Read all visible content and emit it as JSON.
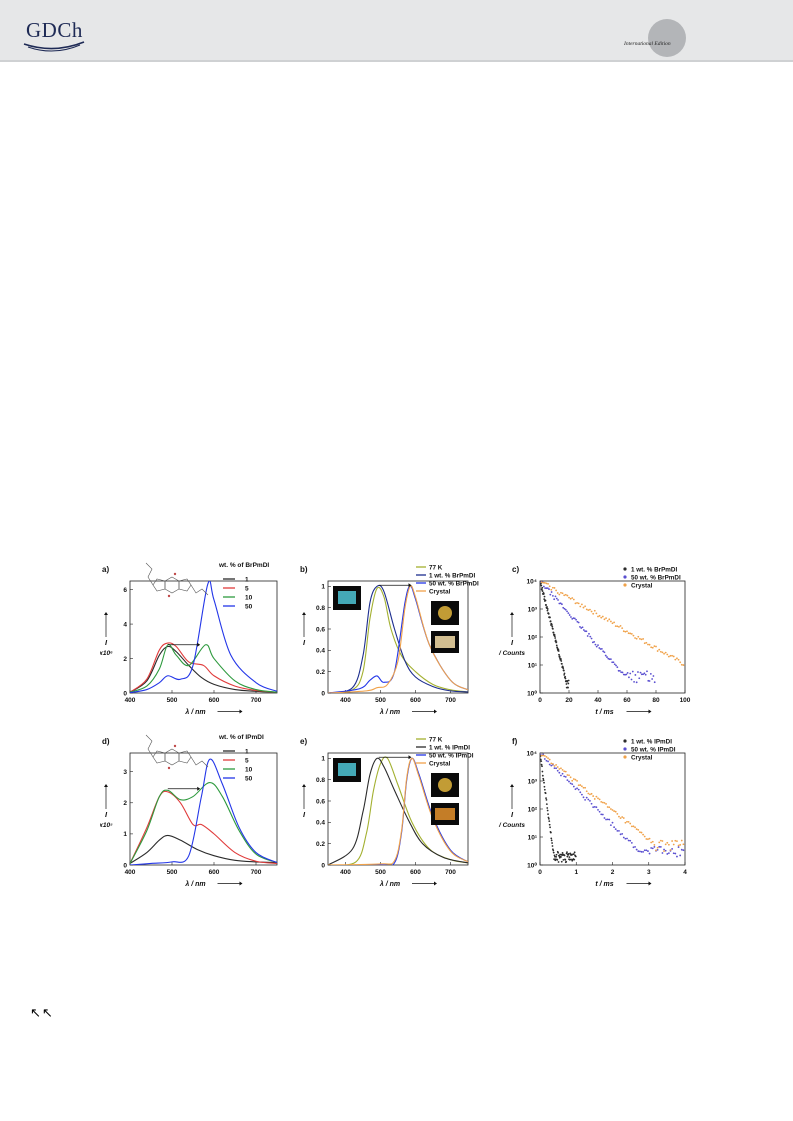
{
  "header": {
    "logo_text": "GDCh",
    "edition_label": "International Edition"
  },
  "nav": {
    "arrows": "↖↖"
  },
  "colors": {
    "black": "#2b2b2b",
    "red": "#e03b3b",
    "green": "#2e9a3e",
    "blue": "#2336e8",
    "olive": "#a3b030",
    "navy": "#1d2e8f",
    "orange": "#f0a24a",
    "violet": "#5a4fd0"
  },
  "chart_data": [
    {
      "panel": "a)",
      "type": "line",
      "legend_title": "wt. % of BrPmDI",
      "legend": [
        "1",
        "5",
        "10",
        "50"
      ],
      "xlabel": "λ / nm",
      "ylabel": "I",
      "ylabel2": "x10⁶",
      "xlim": [
        400,
        750
      ],
      "ylim": [
        0,
        6.5
      ],
      "xticks": [
        400,
        500,
        600,
        700
      ],
      "yticks": [
        0,
        2,
        4,
        6
      ],
      "series": [
        {
          "name": "1",
          "color": "#2b2b2b",
          "x": [
            400,
            440,
            470,
            490,
            510,
            540,
            570,
            600,
            650,
            700,
            750
          ],
          "y": [
            0.05,
            0.7,
            2.2,
            2.7,
            2.4,
            1.6,
            0.9,
            0.5,
            0.2,
            0.1,
            0.05
          ]
        },
        {
          "name": "5",
          "color": "#e03b3b",
          "x": [
            400,
            440,
            470,
            490,
            510,
            540,
            575,
            600,
            650,
            700,
            750
          ],
          "y": [
            0.05,
            0.8,
            2.5,
            2.9,
            2.7,
            1.8,
            1.6,
            1.0,
            0.4,
            0.15,
            0.05
          ]
        },
        {
          "name": "10",
          "color": "#2e9a3e",
          "x": [
            400,
            440,
            470,
            490,
            510,
            540,
            580,
            600,
            650,
            700,
            750
          ],
          "y": [
            0.05,
            0.4,
            1.4,
            2.8,
            2.2,
            1.6,
            2.8,
            2.0,
            0.7,
            0.2,
            0.05
          ]
        },
        {
          "name": "50",
          "color": "#2336e8",
          "x": [
            400,
            440,
            470,
            490,
            520,
            550,
            585,
            600,
            640,
            700,
            750
          ],
          "y": [
            0.02,
            0.2,
            0.6,
            1.0,
            0.8,
            1.6,
            6.3,
            5.4,
            2.2,
            0.6,
            0.1
          ]
        }
      ]
    },
    {
      "panel": "b)",
      "type": "line",
      "legend": [
        "77 K",
        "1 wt. % BrPmDI",
        "50 wt. % BrPmDI",
        "Crystal"
      ],
      "xlabel": "λ / nm",
      "ylabel": "I",
      "xlim": [
        350,
        750
      ],
      "ylim": [
        0,
        1.05
      ],
      "xticks": [
        400,
        500,
        600,
        700
      ],
      "yticks": [
        0.0,
        0.2,
        0.4,
        0.6,
        0.8,
        1.0
      ],
      "series": [
        {
          "name": "77 K",
          "color": "#a3b030",
          "x": [
            350,
            420,
            450,
            470,
            490,
            510,
            530,
            560,
            600,
            650,
            700,
            750
          ],
          "y": [
            0.0,
            0.03,
            0.2,
            0.7,
            0.98,
            0.9,
            0.6,
            0.35,
            0.2,
            0.08,
            0.03,
            0.01
          ]
        },
        {
          "name": "1 wt. % BrPmDI",
          "color": "#1d2e8f",
          "x": [
            350,
            420,
            450,
            470,
            490,
            510,
            540,
            570,
            600,
            650,
            700,
            750
          ],
          "y": [
            0.0,
            0.05,
            0.35,
            0.85,
            1.0,
            0.95,
            0.6,
            0.3,
            0.15,
            0.06,
            0.02,
            0.01
          ]
        },
        {
          "name": "50 wt. % BrPmDI",
          "color": "#2336e8",
          "x": [
            350,
            440,
            470,
            490,
            510,
            540,
            570,
            585,
            600,
            640,
            700,
            750
          ],
          "y": [
            0.0,
            0.04,
            0.12,
            0.16,
            0.1,
            0.2,
            0.85,
            1.0,
            0.88,
            0.45,
            0.12,
            0.03
          ]
        },
        {
          "name": "Crystal",
          "color": "#f0a24a",
          "x": [
            350,
            460,
            490,
            520,
            550,
            570,
            585,
            600,
            640,
            700,
            750
          ],
          "y": [
            0.0,
            0.02,
            0.05,
            0.08,
            0.3,
            0.8,
            1.0,
            0.9,
            0.45,
            0.12,
            0.03
          ]
        }
      ]
    },
    {
      "panel": "c)",
      "type": "scatter",
      "yscale": "log",
      "legend": [
        "1 wt. % BrPmDI",
        "50 wt. % BrPmDI",
        "Crystal"
      ],
      "xlabel": "t / ms",
      "ylabel": "I",
      "ylabel2": "/ Counts",
      "xlim": [
        0,
        100
      ],
      "ylim": [
        1,
        10000
      ],
      "xticks": [
        0,
        20,
        40,
        60,
        80,
        100
      ],
      "yticks": [
        1,
        10,
        100,
        1000,
        10000
      ],
      "series": [
        {
          "name": "1 wt. % BrPmDI",
          "color": "#2b2b2b",
          "tau": 2.2,
          "tmax": 20,
          "floor": 2
        },
        {
          "name": "50 wt. % BrPmDI",
          "color": "#5a4fd0",
          "tau": 7.5,
          "tmax": 80,
          "floor": 4
        },
        {
          "name": "Crystal",
          "color": "#f0a24a",
          "tau": 14.5,
          "tmax": 100,
          "floor": 8
        }
      ]
    },
    {
      "panel": "d)",
      "type": "line",
      "legend_title": "wt. % of IPmDI",
      "legend": [
        "1",
        "5",
        "10",
        "50"
      ],
      "xlabel": "λ / nm",
      "ylabel": "I",
      "ylabel2": "x10⁵",
      "xlim": [
        400,
        750
      ],
      "ylim": [
        0,
        3.6
      ],
      "xticks": [
        400,
        500,
        600,
        700
      ],
      "yticks": [
        0,
        1,
        2,
        3
      ],
      "series": [
        {
          "name": "1",
          "color": "#2b2b2b",
          "x": [
            400,
            440,
            470,
            490,
            520,
            560,
            600,
            650,
            700,
            750
          ],
          "y": [
            0.05,
            0.4,
            0.8,
            0.95,
            0.8,
            0.5,
            0.3,
            0.15,
            0.1,
            0.08
          ]
        },
        {
          "name": "5",
          "color": "#e03b3b",
          "x": [
            400,
            440,
            470,
            490,
            520,
            550,
            570,
            600,
            650,
            700,
            750
          ],
          "y": [
            0.05,
            1.2,
            2.2,
            2.35,
            2.0,
            1.3,
            1.3,
            1.0,
            0.4,
            0.12,
            0.05
          ]
        },
        {
          "name": "10",
          "color": "#2e9a3e",
          "x": [
            400,
            440,
            470,
            490,
            520,
            550,
            590,
            620,
            660,
            700,
            750
          ],
          "y": [
            0.05,
            1.1,
            2.2,
            2.4,
            2.1,
            2.2,
            2.65,
            2.2,
            1.1,
            0.35,
            0.08
          ]
        },
        {
          "name": "50",
          "color": "#2336e8",
          "x": [
            400,
            450,
            500,
            540,
            570,
            590,
            620,
            660,
            700,
            750
          ],
          "y": [
            0.0,
            0.05,
            0.1,
            0.3,
            2.2,
            3.4,
            2.6,
            1.2,
            0.4,
            0.08
          ]
        }
      ]
    },
    {
      "panel": "e)",
      "type": "line",
      "legend": [
        "77 K",
        "1 wt. % IPmDI",
        "50 wt. % IPmDI",
        "Crystal"
      ],
      "xlabel": "λ / nm",
      "ylabel": "I",
      "xlim": [
        350,
        750
      ],
      "ylim": [
        0,
        1.05
      ],
      "xticks": [
        400,
        500,
        600,
        700
      ],
      "yticks": [
        0.0,
        0.2,
        0.4,
        0.6,
        0.8,
        1.0
      ],
      "series": [
        {
          "name": "77 K",
          "color": "#a3b030",
          "x": [
            350,
            430,
            460,
            480,
            500,
            520,
            550,
            590,
            640,
            700,
            750
          ],
          "y": [
            0.0,
            0.03,
            0.3,
            0.7,
            0.95,
            1.0,
            0.75,
            0.4,
            0.15,
            0.05,
            0.02
          ]
        },
        {
          "name": "1 wt. % IPmDI",
          "color": "#2b2b2b",
          "x": [
            350,
            420,
            450,
            470,
            490,
            510,
            540,
            580,
            620,
            680,
            750
          ],
          "y": [
            0.0,
            0.15,
            0.5,
            0.85,
            1.0,
            0.92,
            0.7,
            0.42,
            0.2,
            0.07,
            0.02
          ]
        },
        {
          "name": "50 wt. % IPmDI",
          "color": "#2336e8",
          "x": [
            350,
            500,
            540,
            560,
            575,
            590,
            610,
            650,
            700,
            750
          ],
          "y": [
            0.0,
            0.0,
            0.02,
            0.3,
            0.8,
            1.0,
            0.85,
            0.45,
            0.14,
            0.03
          ]
        },
        {
          "name": "Crystal",
          "color": "#f0a24a",
          "x": [
            350,
            500,
            540,
            560,
            575,
            590,
            610,
            650,
            700,
            750
          ],
          "y": [
            0.0,
            0.01,
            0.04,
            0.32,
            0.82,
            1.0,
            0.83,
            0.43,
            0.13,
            0.03
          ]
        }
      ]
    },
    {
      "panel": "f)",
      "type": "scatter",
      "yscale": "log",
      "legend": [
        "1 wt. % IPmDI",
        "50 wt. % IPmDI",
        "Crystal"
      ],
      "xlabel": "t / ms",
      "ylabel": "I",
      "ylabel2": "/ Counts",
      "xlim": [
        0,
        4
      ],
      "ylim": [
        1,
        10000
      ],
      "xticks": [
        0,
        1,
        2,
        3,
        4
      ],
      "yticks": [
        1,
        10,
        100,
        1000,
        10000
      ],
      "series": [
        {
          "name": "1 wt. % IPmDI",
          "color": "#2b2b2b",
          "tau": 0.045,
          "tmax": 1.0,
          "floor": 2
        },
        {
          "name": "50 wt. % IPmDI",
          "color": "#5a4fd0",
          "tau": 0.34,
          "tmax": 4.0,
          "floor": 3
        },
        {
          "name": "Crystal",
          "color": "#f0a24a",
          "tau": 0.42,
          "tmax": 4.0,
          "floor": 5
        }
      ]
    }
  ]
}
